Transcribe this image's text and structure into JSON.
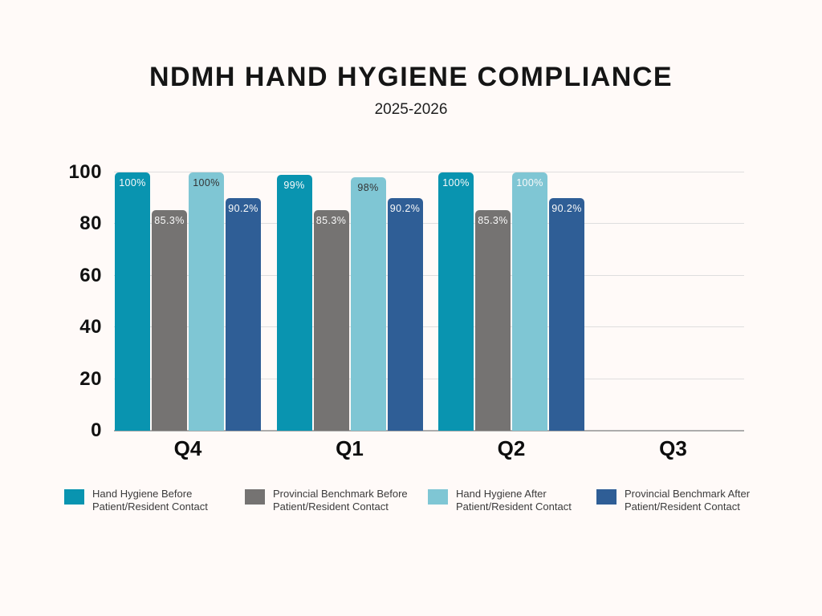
{
  "page": {
    "background": "#FFFAF8"
  },
  "header": {
    "title": "NDMH HAND HYGIENE COMPLIANCE",
    "subtitle": "2025-2026"
  },
  "colors": {
    "teal": "#0994B0",
    "gray": "#757372",
    "light_blue": "#7FC6D4",
    "dark_blue": "#2F5E96",
    "gridline": "#DEDEDE",
    "axis_line": "#ACACAC",
    "title_text": "#151515",
    "tick_text": "#111111",
    "legend_text": "#3B3B3B",
    "label_light": "#FAFAFA",
    "label_dark": "#333333"
  },
  "chart_data": {
    "type": "bar",
    "title": "NDMH HAND HYGIENE COMPLIANCE",
    "subtitle": "2025-2026",
    "categories": [
      "Q4",
      "Q1",
      "Q2",
      "Q3"
    ],
    "series": [
      {
        "name": "Hand Hygiene Before Patient/Resident Contact",
        "color": "#0994B0",
        "values": [
          100,
          99,
          100,
          null
        ],
        "data_labels": [
          "100%",
          "99%",
          "100%",
          ""
        ],
        "label_colors": [
          "#FAFAFA",
          "#FAFAFA",
          "#FAFAFA",
          ""
        ]
      },
      {
        "name": "Provincial Benchmark Before Patient/Resident Contact",
        "color": "#757372",
        "values": [
          85.3,
          85.3,
          85.3,
          null
        ],
        "data_labels": [
          "85.3%",
          "85.3%",
          "85.3%",
          ""
        ],
        "label_colors": [
          "#FAFAFA",
          "#FAFAFA",
          "#FAFAFA",
          ""
        ]
      },
      {
        "name": "Hand Hygiene After Patient/Resident Contact",
        "color": "#7FC6D4",
        "values": [
          100,
          98,
          100,
          null
        ],
        "data_labels": [
          "100%",
          "98%",
          "100%",
          ""
        ],
        "label_colors": [
          "#333333",
          "#333333",
          "#FAFAFA",
          ""
        ]
      },
      {
        "name": "Provincial Benchmark After Patient/Resident Contact",
        "color": "#2F5E96",
        "values": [
          90.2,
          90.2,
          90.2,
          null
        ],
        "data_labels": [
          "90.2%",
          "90.2%",
          "90.2%",
          ""
        ],
        "label_colors": [
          "#FAFAFA",
          "#FAFAFA",
          "#FAFAFA",
          ""
        ]
      }
    ],
    "xlabel": "",
    "ylabel": "",
    "ylim": [
      0,
      100
    ],
    "yticks": [
      0,
      20,
      40,
      60,
      80,
      100
    ],
    "grid": true,
    "legend_position": "bottom",
    "legend": [
      {
        "lines": [
          "Hand Hygiene Before",
          "Patient/Resident Contact"
        ],
        "color": "#0994B0"
      },
      {
        "lines": [
          "Provincial Benchmark Before",
          "Patient/Resident Contact"
        ],
        "color": "#757372"
      },
      {
        "lines": [
          "Hand Hygiene After",
          "Patient/Resident Contact"
        ],
        "color": "#7FC6D4"
      },
      {
        "lines": [
          "Provincial Benchmark After",
          "Patient/Resident Contact"
        ],
        "color": "#2F5E96"
      }
    ]
  }
}
